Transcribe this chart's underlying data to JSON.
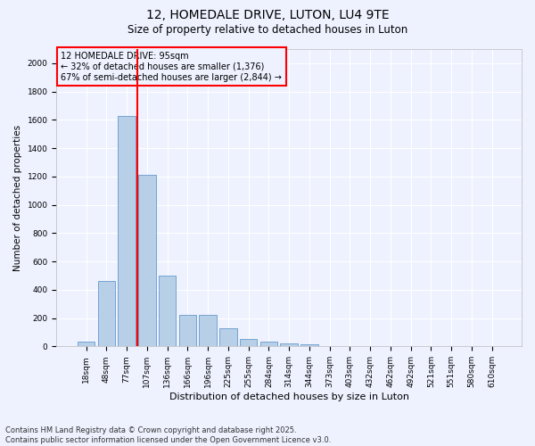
{
  "title": "12, HOMEDALE DRIVE, LUTON, LU4 9TE",
  "subtitle": "Size of property relative to detached houses in Luton",
  "xlabel": "Distribution of detached houses by size in Luton",
  "ylabel": "Number of detached properties",
  "categories": [
    "18sqm",
    "48sqm",
    "77sqm",
    "107sqm",
    "136sqm",
    "166sqm",
    "196sqm",
    "225sqm",
    "255sqm",
    "284sqm",
    "314sqm",
    "344sqm",
    "373sqm",
    "403sqm",
    "432sqm",
    "462sqm",
    "492sqm",
    "521sqm",
    "551sqm",
    "580sqm",
    "610sqm"
  ],
  "values": [
    35,
    465,
    1625,
    1210,
    500,
    225,
    225,
    130,
    50,
    35,
    20,
    15,
    0,
    0,
    0,
    0,
    0,
    0,
    0,
    0,
    0
  ],
  "bar_color": "#b8cfe8",
  "bar_edge_color": "#6699cc",
  "vline_index": 2.5,
  "vline_color": "red",
  "annotation_box_text": "12 HOMEDALE DRIVE: 95sqm\n← 32% of detached houses are smaller (1,376)\n67% of semi-detached houses are larger (2,844) →",
  "annotation_box_color": "red",
  "annotation_text_color": "black",
  "ylim": [
    0,
    2100
  ],
  "yticks": [
    0,
    200,
    400,
    600,
    800,
    1000,
    1200,
    1400,
    1600,
    1800,
    2000
  ],
  "background_color": "#eef2ff",
  "grid_color": "#ffffff",
  "footer_line1": "Contains HM Land Registry data © Crown copyright and database right 2025.",
  "footer_line2": "Contains public sector information licensed under the Open Government Licence v3.0.",
  "title_fontsize": 10,
  "subtitle_fontsize": 8.5,
  "xlabel_fontsize": 8,
  "ylabel_fontsize": 7.5,
  "tick_fontsize": 6.5,
  "annotation_fontsize": 7,
  "footer_fontsize": 6
}
